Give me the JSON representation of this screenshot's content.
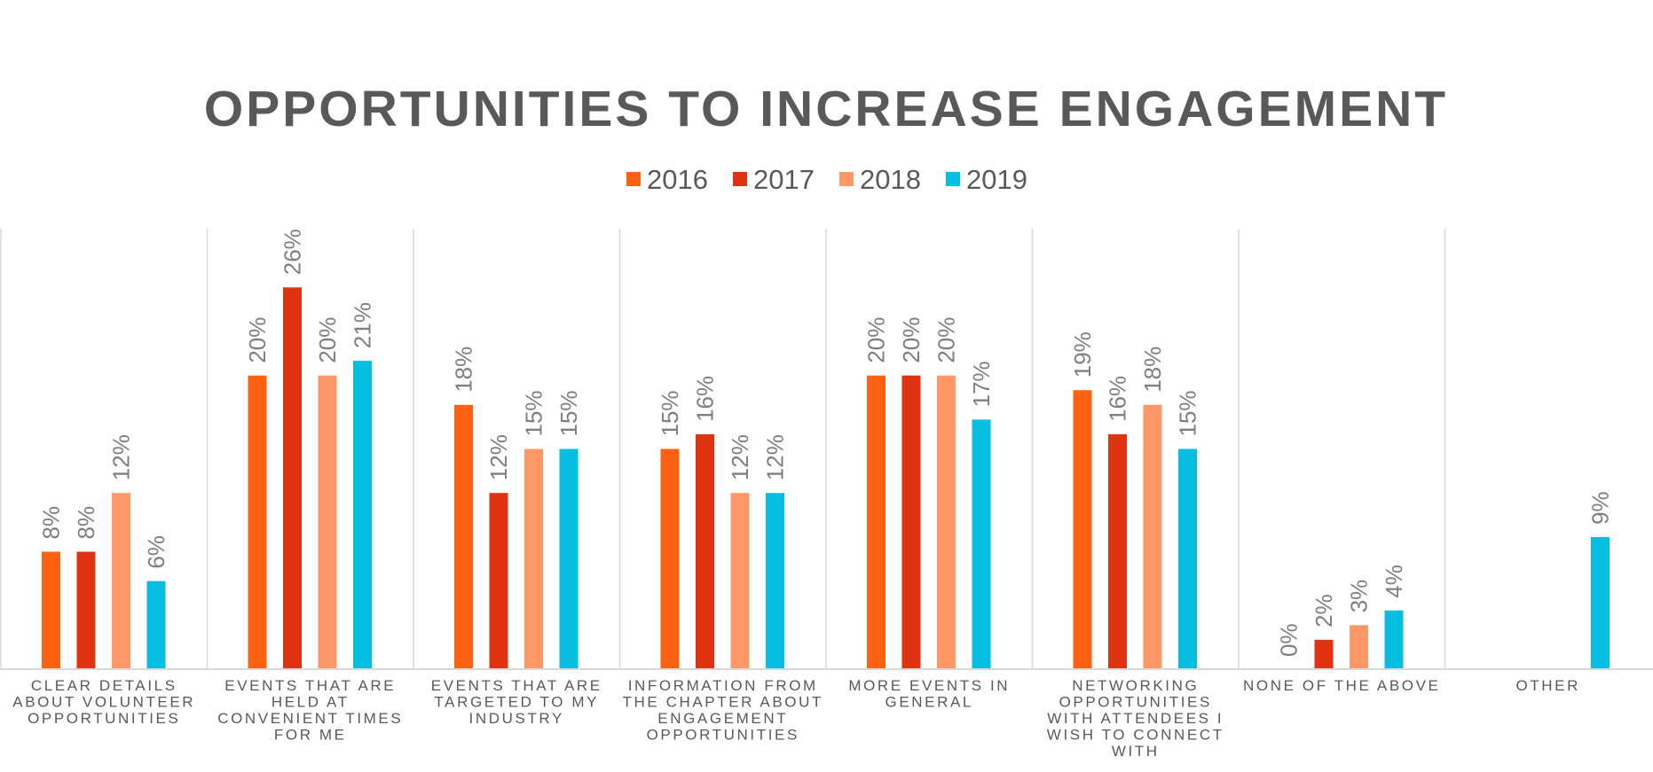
{
  "chart_data": {
    "type": "bar",
    "title": "OPPORTUNITIES TO INCREASE ENGAGEMENT",
    "xlabel": "",
    "ylabel": "",
    "ylim": [
      0,
      30
    ],
    "grid": false,
    "legend_position": "top-center",
    "value_format": "percent",
    "categories": [
      "CLEAR DETAILS ABOUT VOLUNTEER OPPORTUNITIES",
      "EVENTS THAT ARE HELD AT CONVENIENT TIMES FOR ME",
      "EVENTS THAT ARE TARGETED TO MY INDUSTRY",
      "INFORMATION FROM THE CHAPTER ABOUT ENGAGEMENT OPPORTUNITIES",
      "MORE EVENTS IN GENERAL",
      "NETWORKING OPPORTUNITIES WITH ATTENDEES I WISH TO CONNECT WITH",
      "NONE OF THE ABOVE",
      "OTHER"
    ],
    "category_label_lines": [
      [
        "CLEAR DETAILS",
        "ABOUT VOLUNTEER",
        "OPPORTUNITIES"
      ],
      [
        "EVENTS THAT ARE",
        "HELD AT",
        "CONVENIENT TIMES",
        "FOR ME"
      ],
      [
        "EVENTS THAT ARE",
        "TARGETED TO MY",
        "INDUSTRY"
      ],
      [
        "INFORMATION FROM",
        "THE CHAPTER ABOUT",
        "ENGAGEMENT",
        "OPPORTUNITIES"
      ],
      [
        "MORE EVENTS IN",
        "GENERAL"
      ],
      [
        "NETWORKING",
        "OPPORTUNITIES",
        "WITH ATTENDEES I",
        "WISH TO CONNECT",
        "WITH"
      ],
      [
        "NONE OF THE ABOVE"
      ],
      [
        "OTHER"
      ]
    ],
    "series": [
      {
        "name": "2016",
        "color": "#ff6112",
        "values": [
          8,
          20,
          18,
          15,
          20,
          19,
          null,
          null
        ]
      },
      {
        "name": "2017",
        "color": "#e03312",
        "values": [
          8,
          26,
          12,
          16,
          20,
          16,
          2,
          null
        ]
      },
      {
        "name": "2018",
        "color": "#ff9866",
        "values": [
          12,
          20,
          15,
          12,
          20,
          18,
          3,
          null
        ]
      },
      {
        "name": "2019",
        "color": "#06bee1",
        "values": [
          6,
          21,
          15,
          12,
          17,
          15,
          4,
          9
        ]
      }
    ],
    "data_labels": [
      [
        "8%",
        "20%",
        "18%",
        "15%",
        "20%",
        "19%",
        "0%",
        ""
      ],
      [
        "8%",
        "26%",
        "12%",
        "16%",
        "20%",
        "16%",
        "2%",
        ""
      ],
      [
        "12%",
        "20%",
        "15%",
        "12%",
        "20%",
        "18%",
        "3%",
        ""
      ],
      [
        "6%",
        "21%",
        "15%",
        "12%",
        "17%",
        "15%",
        "4%",
        "9%"
      ]
    ]
  }
}
